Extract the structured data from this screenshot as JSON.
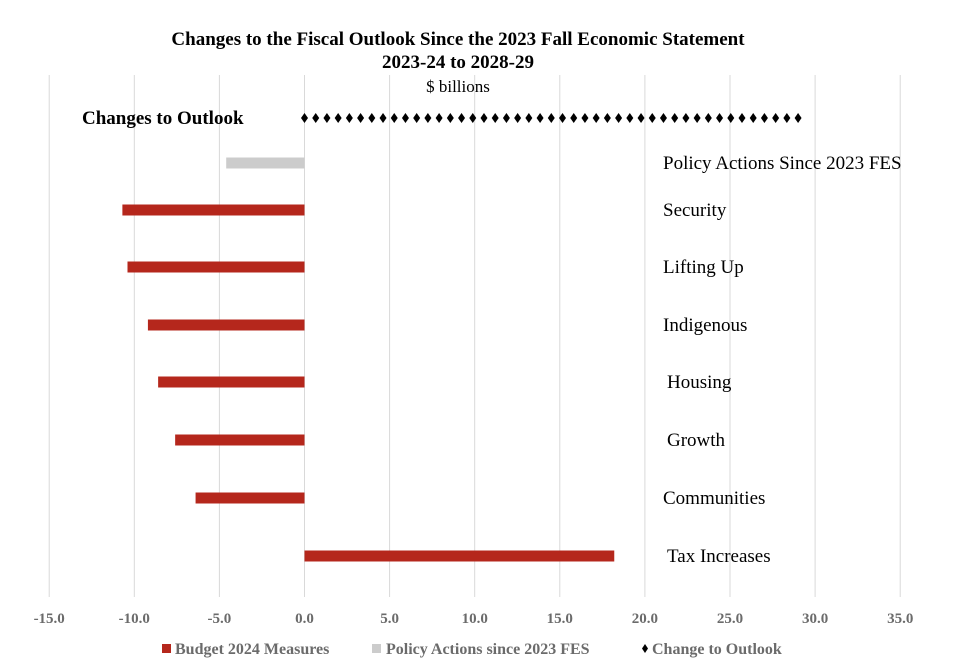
{
  "chart_data": {
    "type": "bar",
    "orientation": "horizontal",
    "title": "Changes to the Fiscal Outlook Since the 2023 Fall Economic Statement",
    "title_line2": "2023-24 to 2028-29",
    "subtitle": "$ billions",
    "xlim": [
      -15,
      35
    ],
    "x_ticks": [
      "-15.0",
      "-10.0",
      "-5.0",
      "0.0",
      "5.0",
      "10.0",
      "15.0",
      "20.0",
      "25.0",
      "30.0",
      "35.0"
    ],
    "x_tick_values": [
      -15,
      -10,
      -5,
      0,
      5,
      10,
      15,
      20,
      25,
      30,
      35
    ],
    "grid": "vertical",
    "legend_position": "bottom",
    "categories": [
      "Changes to Outlook",
      "Policy Actions Since 2023 FES",
      "Security",
      "Lifting Up",
      "Indigenous",
      "Housing",
      "Growth",
      "Communities",
      "Tax Increases"
    ],
    "series": [
      {
        "name": "Budget 2024 Measures",
        "color": "#b5271c",
        "values": [
          null,
          null,
          -10.7,
          -10.4,
          -9.2,
          -8.6,
          -7.6,
          -6.4,
          18.2
        ]
      },
      {
        "name": "Policy Actions since 2023 FES",
        "color": "#cccccc",
        "values": [
          null,
          -4.6,
          null,
          null,
          null,
          null,
          null,
          null,
          null
        ]
      },
      {
        "name": "Change to Outlook",
        "color": "#000000",
        "style": "diamond-line",
        "values": [
          29.0,
          null,
          null,
          null,
          null,
          null,
          null,
          null,
          null
        ]
      }
    ]
  }
}
